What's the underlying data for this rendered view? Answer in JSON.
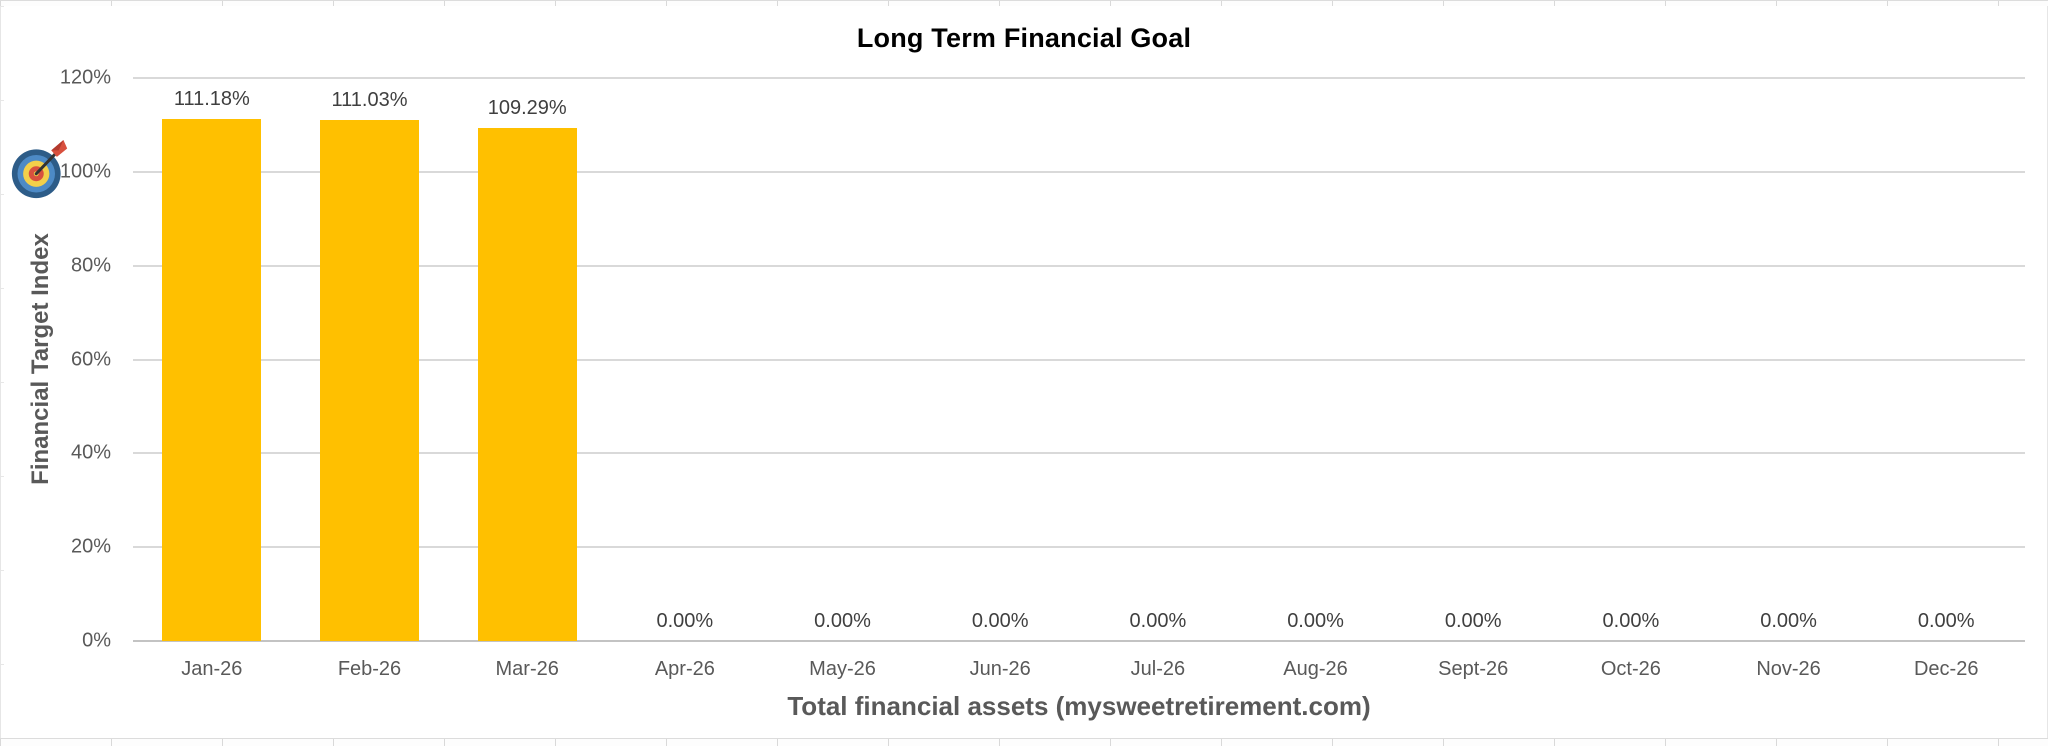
{
  "chart_data": {
    "type": "bar",
    "title": "Long Term Financial Goal",
    "ylabel": "Financial Target Index",
    "xlabel": "Total financial assets (mysweetretirement.com)",
    "categories": [
      "Jan-26",
      "Feb-26",
      "Mar-26",
      "Apr-26",
      "May-26",
      "Jun-26",
      "Jul-26",
      "Aug-26",
      "Sept-26",
      "Oct-26",
      "Nov-26",
      "Dec-26"
    ],
    "values": [
      111.18,
      111.03,
      109.29,
      0,
      0,
      0,
      0,
      0,
      0,
      0,
      0,
      0
    ],
    "value_labels": [
      "111.18%",
      "111.03%",
      "109.29%",
      "0.00%",
      "0.00%",
      "0.00%",
      "0.00%",
      "0.00%",
      "0.00%",
      "0.00%",
      "0.00%",
      "0.00%"
    ],
    "y_ticks": [
      "120%",
      "100%",
      "80%",
      "60%",
      "40%",
      "20%",
      "0%"
    ],
    "ylim": [
      0,
      120
    ],
    "grid": true,
    "legend": "none",
    "annotations": {
      "target_icon": "dartboard with dart placed on y-axis at 100% level"
    },
    "colors": {
      "bar": "#FFC000",
      "gridline": "#D9D9D9",
      "axis_line": "#C3C3C3",
      "tick_label": "#595959",
      "value_label": "#3F3F3F",
      "title": "#000000",
      "axis_title": "#595959"
    }
  }
}
